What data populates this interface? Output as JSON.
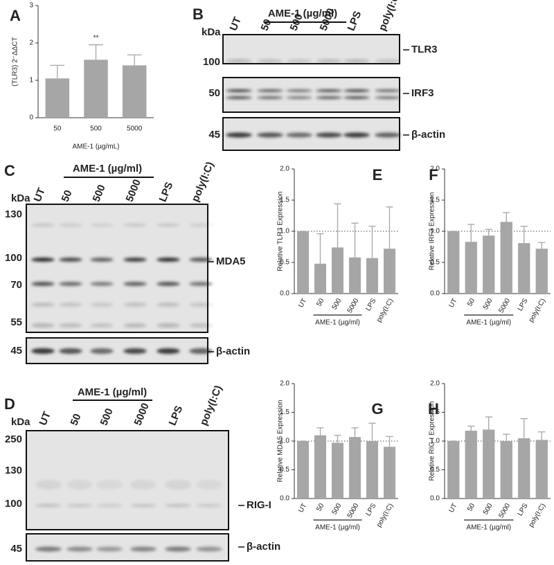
{
  "chart_data": [
    {
      "type": "bar",
      "panel": "A",
      "ylabel": "(TLR3) 2⁻ΔΔCT",
      "xlabel": "AME-1 (µg/mL)",
      "categories": [
        "50",
        "500",
        "5000"
      ],
      "values": [
        1.05,
        1.55,
        1.4
      ],
      "errors": [
        0.35,
        0.4,
        0.28
      ],
      "significance": [
        null,
        "**",
        null
      ],
      "color": "#a6a6a6",
      "ylim": [
        0,
        3
      ],
      "yticks": [
        0,
        1,
        2,
        3
      ]
    },
    {
      "type": "bar",
      "panel": "E",
      "ylabel": "Relative TLR3 Expression",
      "group_label": "AME-1 (µg/ml)",
      "categories": [
        "UT",
        "50",
        "500",
        "5000",
        "LPS",
        "poly(I:C)"
      ],
      "values": [
        1.0,
        0.48,
        0.74,
        0.58,
        0.57,
        0.72
      ],
      "errors": [
        0,
        0.48,
        0.7,
        0.55,
        0.51,
        0.67
      ],
      "reference_line": 1,
      "color": "#a6a6a6",
      "ylim": [
        0,
        2
      ],
      "yticks": [
        {
          "value": 0,
          "label": "0.0"
        },
        0.5,
        {
          "value": 1,
          "label": "1.0"
        },
        1.5,
        {
          "value": 2,
          "label": "2.0"
        }
      ]
    },
    {
      "type": "bar",
      "panel": "F",
      "ylabel": "Relative IRF3 Expression",
      "group_label": "AME-1 (µg/ml)",
      "categories": [
        "UT",
        "50",
        "500",
        "5000",
        "LPS",
        "poly(I:C)"
      ],
      "values": [
        1.0,
        0.83,
        0.93,
        1.15,
        0.81,
        0.72
      ],
      "errors": [
        0,
        0.28,
        0.1,
        0.15,
        0.27,
        0.1
      ],
      "reference_line": 1,
      "color": "#a6a6a6",
      "ylim": [
        0,
        2
      ],
      "yticks": [
        {
          "value": 0,
          "label": "0.0"
        },
        0.5,
        {
          "value": 1,
          "label": "1.0"
        },
        1.5,
        {
          "value": 2,
          "label": "2.0"
        }
      ]
    },
    {
      "type": "bar",
      "panel": "G",
      "ylabel": "Relative MDA5 Expression",
      "group_label": "AME-1 (µg/ml)",
      "categories": [
        "UT",
        "50",
        "500",
        "5000",
        "LPS",
        "poly(I:C)"
      ],
      "values": [
        1.0,
        1.1,
        0.97,
        1.07,
        1.0,
        0.9
      ],
      "errors": [
        0,
        0.13,
        0.13,
        0.16,
        0.31,
        0.18
      ],
      "reference_line": 1,
      "color": "#a6a6a6",
      "ylim": [
        0,
        2
      ],
      "yticks": [
        {
          "value": 0,
          "label": "0.0"
        },
        0.5,
        {
          "value": 1,
          "label": "1.0"
        },
        1.5,
        {
          "value": 2,
          "label": "2.0"
        }
      ]
    },
    {
      "type": "bar",
      "panel": "H",
      "ylabel": "Relative RIG-I Expression",
      "group_label": "AME-1 (µg/ml)",
      "categories": [
        "UT",
        "50",
        "500",
        "5000",
        "LPS",
        "poly(I:C)"
      ],
      "values": [
        1.0,
        1.18,
        1.2,
        1.0,
        1.05,
        1.02
      ],
      "errors": [
        0,
        0.08,
        0.22,
        0.12,
        0.34,
        0.14
      ],
      "reference_line": 1,
      "color": "#a6a6a6",
      "ylim": [
        0,
        2
      ],
      "yticks": [
        {
          "value": 0,
          "label": "0.0"
        },
        0.5,
        {
          "value": 1,
          "label": "1.0"
        },
        1.5,
        {
          "value": 2,
          "label": "2.0"
        }
      ]
    }
  ],
  "blots": [
    {
      "panel": "B",
      "unit": "kDa",
      "group_label": "AME-1 (µg/ml)",
      "lanes": [
        "UT",
        "50",
        "500",
        "5000",
        "LPS",
        "poly(I:C)"
      ],
      "markers": [
        "100",
        "50",
        "45"
      ],
      "targets": [
        "TLR3",
        "IRF3",
        "β-actin"
      ]
    },
    {
      "panel": "C",
      "unit": "kDa",
      "group_label": "AME-1 (µg/ml)",
      "lanes": [
        "UT",
        "50",
        "500",
        "5000",
        "LPS",
        "poly(I:C)"
      ],
      "markers": [
        "130",
        "100",
        "70",
        "55",
        "45"
      ],
      "targets": [
        "MDA5",
        "β-actin"
      ]
    },
    {
      "panel": "D",
      "unit": "kDa",
      "group_label": "AME-1 (µg/ml)",
      "lanes": [
        "UT",
        "50",
        "500",
        "5000",
        "LPS",
        "poly(I:C)"
      ],
      "markers": [
        "250",
        "130",
        "100",
        "45"
      ],
      "targets": [
        "RIG-I",
        "β-actin"
      ]
    }
  ]
}
